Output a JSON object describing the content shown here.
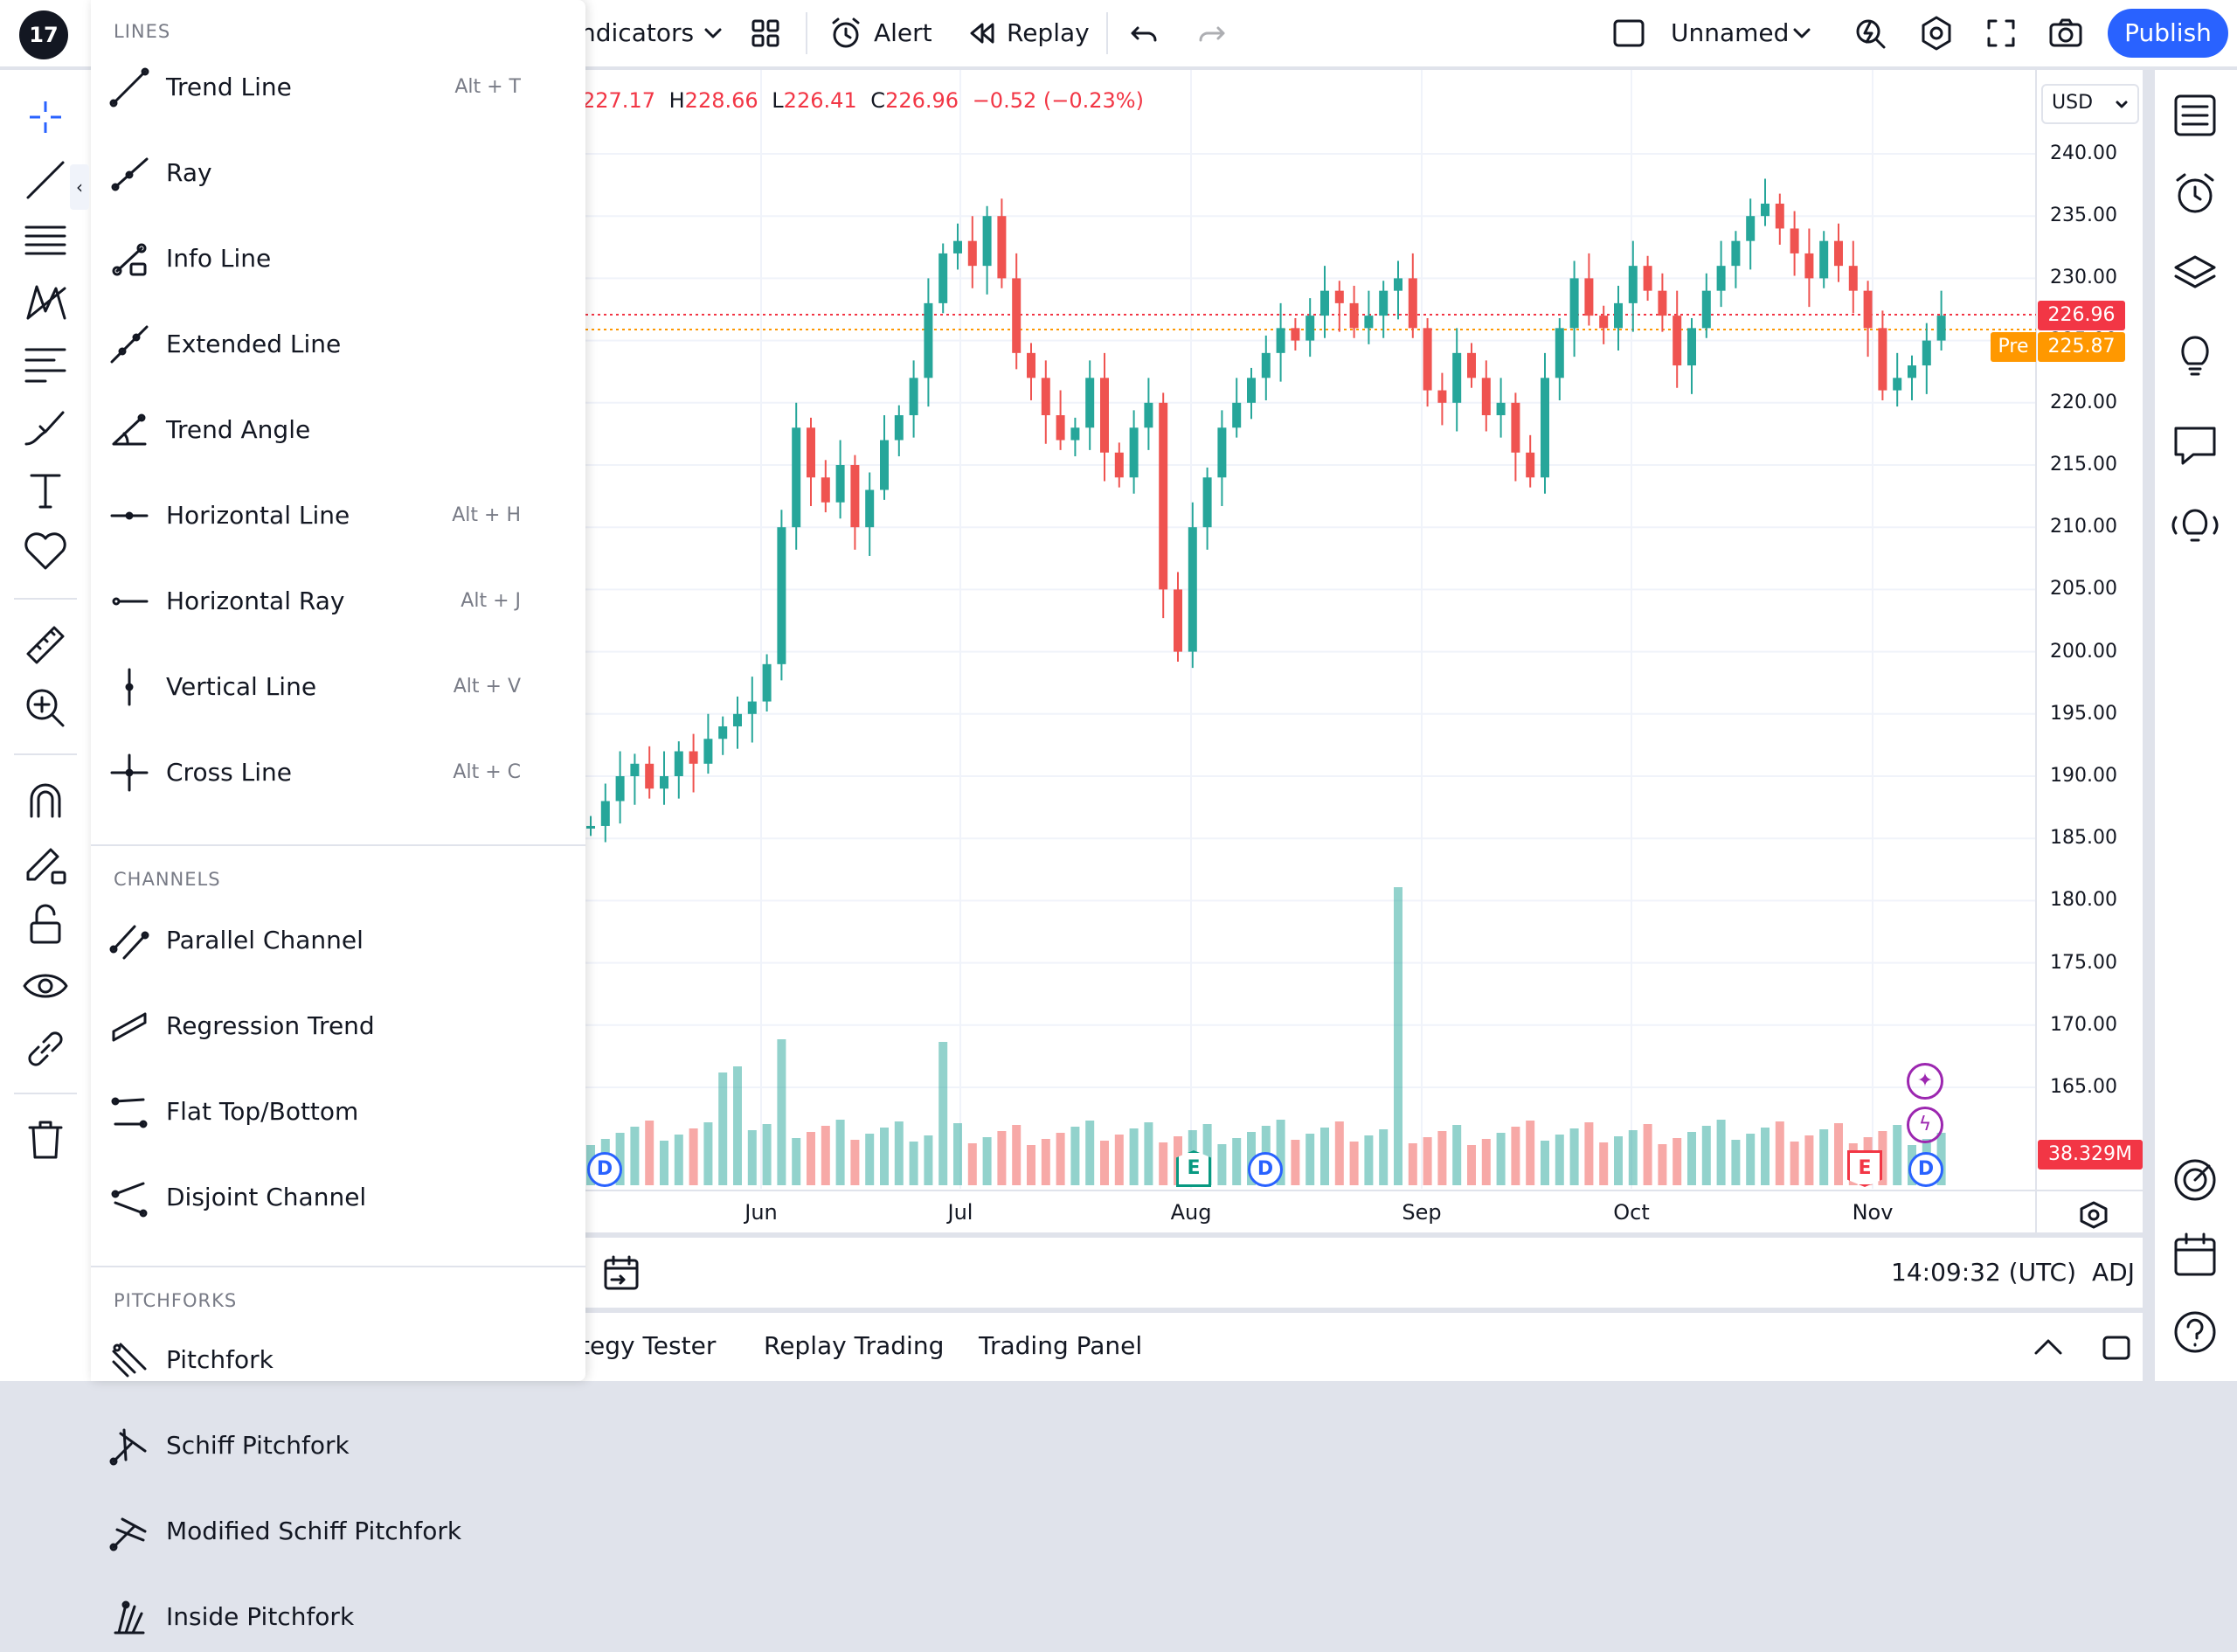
{
  "topbar": {
    "indicators_label": "ndicators",
    "alert_label": "Alert",
    "replay_label": "Replay",
    "layout_name": "Unnamed",
    "publish_label": "Publish"
  },
  "ohlc": {
    "open": "227.17",
    "high_prefix": "H",
    "high": "228.66",
    "low_prefix": "L",
    "low": "226.41",
    "close_prefix": "C",
    "close": "226.96",
    "change": "−0.52 (−0.23%)"
  },
  "price_scale": {
    "currency": "USD",
    "levels": [
      "240.00",
      "235.00",
      "230.00",
      "225.00",
      "220.00",
      "215.00",
      "210.00",
      "205.00",
      "200.00",
      "195.00",
      "190.00",
      "185.00",
      "180.00",
      "175.00",
      "170.00",
      "165.00"
    ],
    "last_price": "226.96",
    "pre_label": "Pre",
    "pre_price": "225.87",
    "volume_label": "38.329M"
  },
  "time_axis": {
    "months": [
      "Jun",
      "Jul",
      "Aug",
      "Sep",
      "Oct",
      "Nov"
    ]
  },
  "time_bar": {
    "clock": "14:09:32 (UTC)",
    "adj_label": "ADJ"
  },
  "bottom_tabs": [
    "tegy Tester",
    "Replay Trading",
    "Trading Panel"
  ],
  "markers": {
    "dividend": "D",
    "earnings": "E"
  },
  "dropdown": {
    "sections": [
      {
        "header": "LINES",
        "items": [
          {
            "label": "Trend Line",
            "shortcut": "Alt + T"
          },
          {
            "label": "Ray",
            "shortcut": ""
          },
          {
            "label": "Info Line",
            "shortcut": ""
          },
          {
            "label": "Extended Line",
            "shortcut": ""
          },
          {
            "label": "Trend Angle",
            "shortcut": ""
          },
          {
            "label": "Horizontal Line",
            "shortcut": "Alt + H"
          },
          {
            "label": "Horizontal Ray",
            "shortcut": "Alt + J"
          },
          {
            "label": "Vertical Line",
            "shortcut": "Alt + V"
          },
          {
            "label": "Cross Line",
            "shortcut": "Alt + C"
          }
        ]
      },
      {
        "header": "CHANNELS",
        "items": [
          {
            "label": "Parallel Channel",
            "shortcut": ""
          },
          {
            "label": "Regression Trend",
            "shortcut": ""
          },
          {
            "label": "Flat Top/Bottom",
            "shortcut": ""
          },
          {
            "label": "Disjoint Channel",
            "shortcut": ""
          }
        ]
      },
      {
        "header": "PITCHFORKS",
        "items": [
          {
            "label": "Pitchfork",
            "shortcut": ""
          },
          {
            "label": "Schiff Pitchfork",
            "shortcut": ""
          },
          {
            "label": "Modified Schiff Pitchfork",
            "shortcut": ""
          },
          {
            "label": "Inside Pitchfork",
            "shortcut": ""
          }
        ]
      }
    ]
  },
  "colors": {
    "up": "#26a69a",
    "down": "#ef5350",
    "accent": "#2962ff",
    "pre": "#ff9800"
  }
}
